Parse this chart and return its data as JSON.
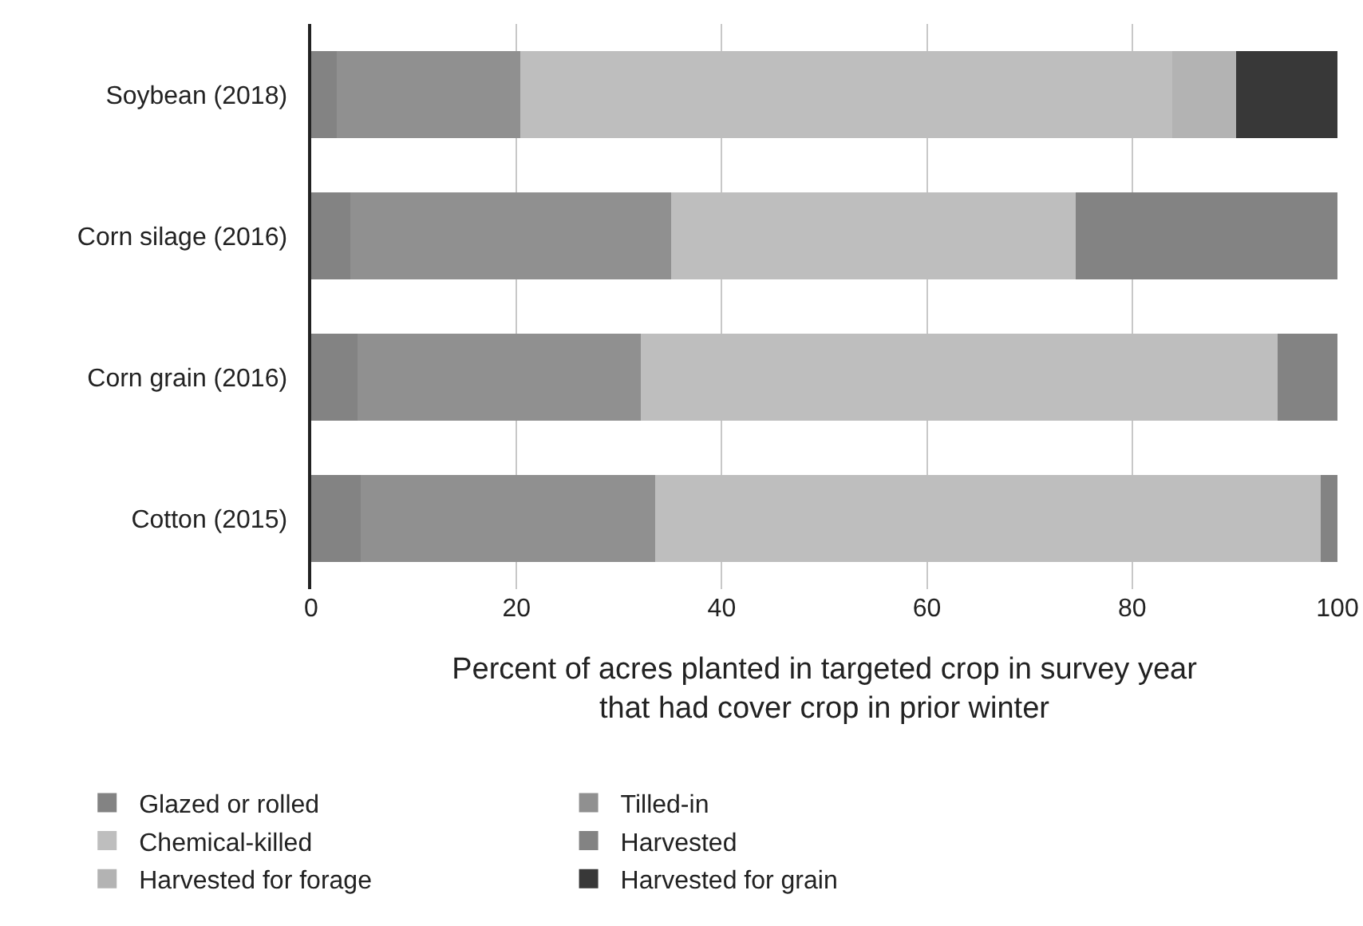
{
  "chart_data": {
    "type": "bar",
    "orientation": "horizontal",
    "stacked": true,
    "xlabel": "Percent of acres planted in targeted crop in survey year\nthat had cover crop in prior winter",
    "categories": [
      "Soybean (2018)",
      "Corn silage (2016)",
      "Corn grain (2016)",
      "Cotton (2015)"
    ],
    "series": [
      {
        "name": "Glazed or rolled",
        "color": "#838383",
        "values": [
          2.5,
          3.8,
          4.5,
          4.8
        ]
      },
      {
        "name": "Tilled-in",
        "color": "#909090",
        "values": [
          17.9,
          31.3,
          27.6,
          28.7
        ]
      },
      {
        "name": "Chemical-killed",
        "color": "#bebebe",
        "values": [
          63.5,
          39.4,
          62.1,
          64.9
        ]
      },
      {
        "name": "Harvested",
        "color": "#838383",
        "values": [
          0,
          25.5,
          5.8,
          1.6
        ]
      },
      {
        "name": "Harvested for forage",
        "color": "#b3b3b3",
        "values": [
          6.2,
          0,
          0,
          0
        ]
      },
      {
        "name": "Harvested for grain",
        "color": "#383838",
        "values": [
          9.9,
          0,
          0,
          0
        ]
      }
    ],
    "xlim": [
      0,
      100
    ],
    "xticks": [
      0,
      20,
      40,
      60,
      80,
      100
    ],
    "grid": "x",
    "legend": "bottom"
  }
}
